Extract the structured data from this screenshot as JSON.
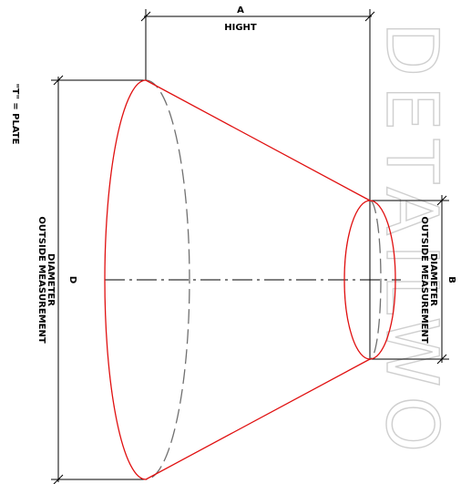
{
  "colors": {
    "outline": "#e01010",
    "dimension": "#000000",
    "hidden": "#707070",
    "watermark": "#cfcfcf"
  },
  "watermark": {
    "text": "DETAILWO"
  },
  "dim_a": {
    "letter": "A",
    "label": "HIGHT"
  },
  "dim_b": {
    "letter": "B",
    "line1": "DIAMETER",
    "line2": "OUTSIDE MEASUREMENT"
  },
  "dim_d": {
    "letter": "D",
    "line1": "DIAMETER",
    "line2": "OUTSIDE MEASUREMENT"
  },
  "plate_note": "\"T\" = PLATE"
}
